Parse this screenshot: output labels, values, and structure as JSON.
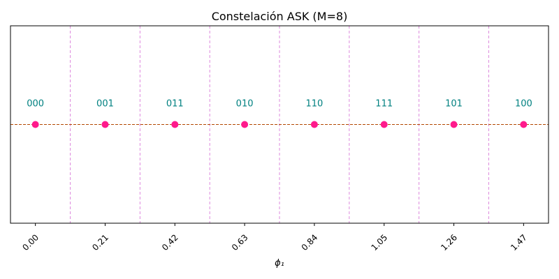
{
  "chart_data": {
    "type": "scatter",
    "title": "Constelación ASK (M=8)",
    "xlabel": "ϕ₁",
    "ylabel": "",
    "x": [
      0.0,
      0.21,
      0.42,
      0.63,
      0.84,
      1.05,
      1.26,
      1.47
    ],
    "y": [
      0,
      0,
      0,
      0,
      0,
      0,
      0,
      0
    ],
    "point_labels": [
      "000",
      "001",
      "011",
      "010",
      "110",
      "111",
      "101",
      "100"
    ],
    "x_ticks": [
      "0.00",
      "0.21",
      "0.42",
      "0.63",
      "0.84",
      "1.05",
      "1.26",
      "1.47"
    ],
    "decision_boundaries": [
      0.105,
      0.315,
      0.525,
      0.735,
      0.945,
      1.155,
      1.365
    ],
    "xlim": [
      -0.075,
      1.545
    ],
    "ylim": [
      -1,
      1
    ],
    "grid": false,
    "colors": {
      "points": "#ff1a8c",
      "labels": "#008080",
      "boundaries": "#dd88dd",
      "baseline": "#b34700"
    }
  }
}
